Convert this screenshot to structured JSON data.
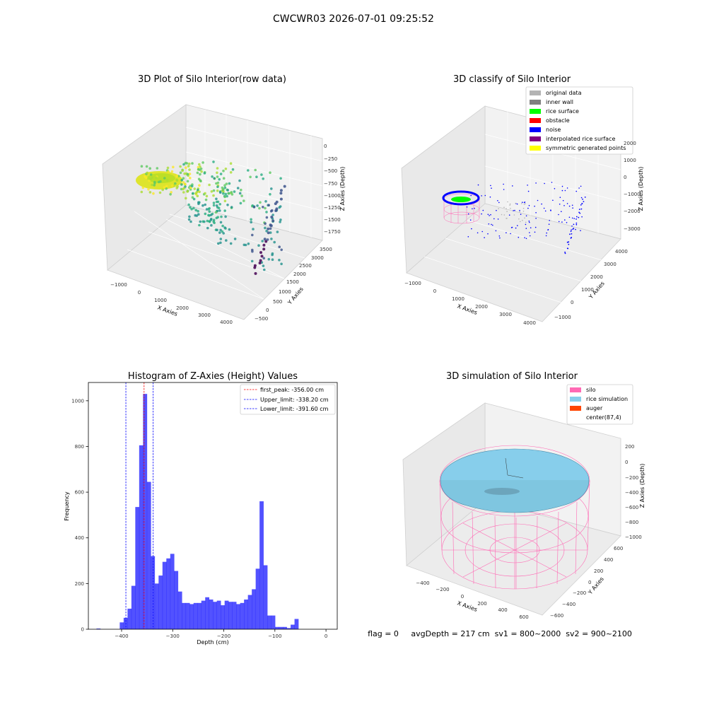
{
  "figure": {
    "suptitle": "CWCWR03 2026-07-01 09:25:52",
    "footer": "flag = 0     avgDepth = 217 cm  sv1 = 800~2000  sv2 = 900~2100"
  },
  "panels": {
    "raw": {
      "title": "3D Plot of Silo Interior(row data)",
      "xlabel": "X Axies",
      "ylabel": "Y Axies",
      "zlabel": "Z Axies (Depth)",
      "xticks": [
        "−1000",
        "0",
        "1000",
        "2000",
        "3000",
        "4000"
      ],
      "yticks": [
        "−500",
        "0",
        "500",
        "1000",
        "1500",
        "2000",
        "2500",
        "3000",
        "3500"
      ],
      "zticks": [
        "0",
        "−250",
        "−500",
        "−750",
        "−1000",
        "−1250",
        "−1500",
        "−1750"
      ]
    },
    "classify": {
      "title": "3D classify of Silo Interior",
      "xlabel": "X Axies",
      "ylabel": "Y Axies",
      "zlabel": "Z Axies (Depth)",
      "xticks": [
        "−1000",
        "0",
        "1000",
        "2000",
        "3000",
        "4000"
      ],
      "yticks": [
        "−1000",
        "0",
        "1000",
        "2000",
        "3000",
        "4000"
      ],
      "zticks": [
        "2000",
        "1000",
        "0",
        "−1000",
        "−2000",
        "−3000"
      ],
      "legend": [
        {
          "label": "original data",
          "color": "#b3b3b3"
        },
        {
          "label": "inner wall",
          "color": "#808080"
        },
        {
          "label": "rice surface",
          "color": "#00ff00"
        },
        {
          "label": "obstacle",
          "color": "#ff0000"
        },
        {
          "label": "noise",
          "color": "#0000ff"
        },
        {
          "label": "interpolated rice surface",
          "color": "#800080"
        },
        {
          "label": "symmetric generated points",
          "color": "#ffff00"
        }
      ]
    },
    "simulation": {
      "title": "3D simulation of Silo Interior",
      "xlabel": "X Axies",
      "ylabel": "Y Axies",
      "zlabel": "Z Axies (Depth)",
      "xticks": [
        "−400",
        "−200",
        "0",
        "200",
        "400",
        "600"
      ],
      "yticks": [
        "−600",
        "−400",
        "−200",
        "0",
        "200",
        "400",
        "600"
      ],
      "zticks": [
        "200",
        "0",
        "−200",
        "−400",
        "−600",
        "−800",
        "−1000"
      ],
      "legend": [
        {
          "label": "silo",
          "color": "#ff69b4"
        },
        {
          "label": "rice simulation",
          "color": "#87ceeb"
        },
        {
          "label": "auger",
          "color": "#ff4500"
        },
        {
          "label": "center(87,4)",
          "color": ""
        }
      ]
    }
  },
  "chart_data": [
    {
      "type": "scatter",
      "title": "3D Plot of Silo Interior(row data)",
      "note": "3D point cloud colored by depth"
    },
    {
      "type": "scatter",
      "title": "3D classify of Silo Interior"
    },
    {
      "type": "bar",
      "title": "Histogram of Z-Axies (Height) Values",
      "xlabel": "Depth (cm)",
      "ylabel": "Frequency",
      "xlim": [
        -465,
        22
      ],
      "ylim": [
        0,
        1080
      ],
      "xticks": [
        -400,
        -300,
        -200,
        -100,
        0
      ],
      "yticks": [
        0,
        200,
        400,
        600,
        800,
        1000
      ],
      "bin_width": 7.6,
      "bar_color": "#0000ff",
      "bins_left": [
        -449.2,
        -441.6,
        -434.0,
        -426.4,
        -418.8,
        -411.2,
        -403.6,
        -396.0,
        -388.4,
        -380.8,
        -373.2,
        -365.6,
        -358.0,
        -350.4,
        -342.8,
        -335.2,
        -327.6,
        -320.0,
        -312.4,
        -304.8,
        -297.2,
        -289.6,
        -282.0,
        -274.4,
        -266.8,
        -259.2,
        -251.6,
        -244.0,
        -236.4,
        -228.8,
        -221.2,
        -213.6,
        -206.0,
        -198.4,
        -190.8,
        -183.2,
        -175.6,
        -168.0,
        -160.4,
        -152.8,
        -145.2,
        -137.6,
        -130.0,
        -122.4,
        -114.8,
        -107.2,
        -99.6,
        -92.0,
        -84.4,
        -76.8,
        -69.2,
        -61.6,
        -54.0,
        -46.4,
        -38.8,
        -31.2,
        -23.6,
        -16.0,
        -8.4
      ],
      "values": [
        3,
        0,
        0,
        0,
        0,
        0,
        30,
        50,
        90,
        190,
        535,
        805,
        1030,
        645,
        320,
        200,
        235,
        295,
        310,
        330,
        255,
        165,
        115,
        115,
        110,
        115,
        115,
        125,
        140,
        130,
        120,
        125,
        105,
        125,
        120,
        120,
        110,
        115,
        130,
        150,
        175,
        265,
        560,
        280,
        60,
        60,
        10,
        10,
        10,
        5,
        20,
        45,
        0,
        0,
        0,
        0,
        0,
        0,
        0
      ],
      "lines": [
        {
          "label": "first_peak: -356.00 cm",
          "x": -356.0,
          "color": "#ff0000"
        },
        {
          "label": "Upper_limit: -338.20 cm",
          "x": -338.2,
          "color": "#0000ff"
        },
        {
          "label": "Lower_limit: -391.60 cm",
          "x": -391.6,
          "color": "#0000ff"
        }
      ]
    },
    {
      "type": "scatter",
      "title": "3D simulation of Silo Interior"
    }
  ]
}
